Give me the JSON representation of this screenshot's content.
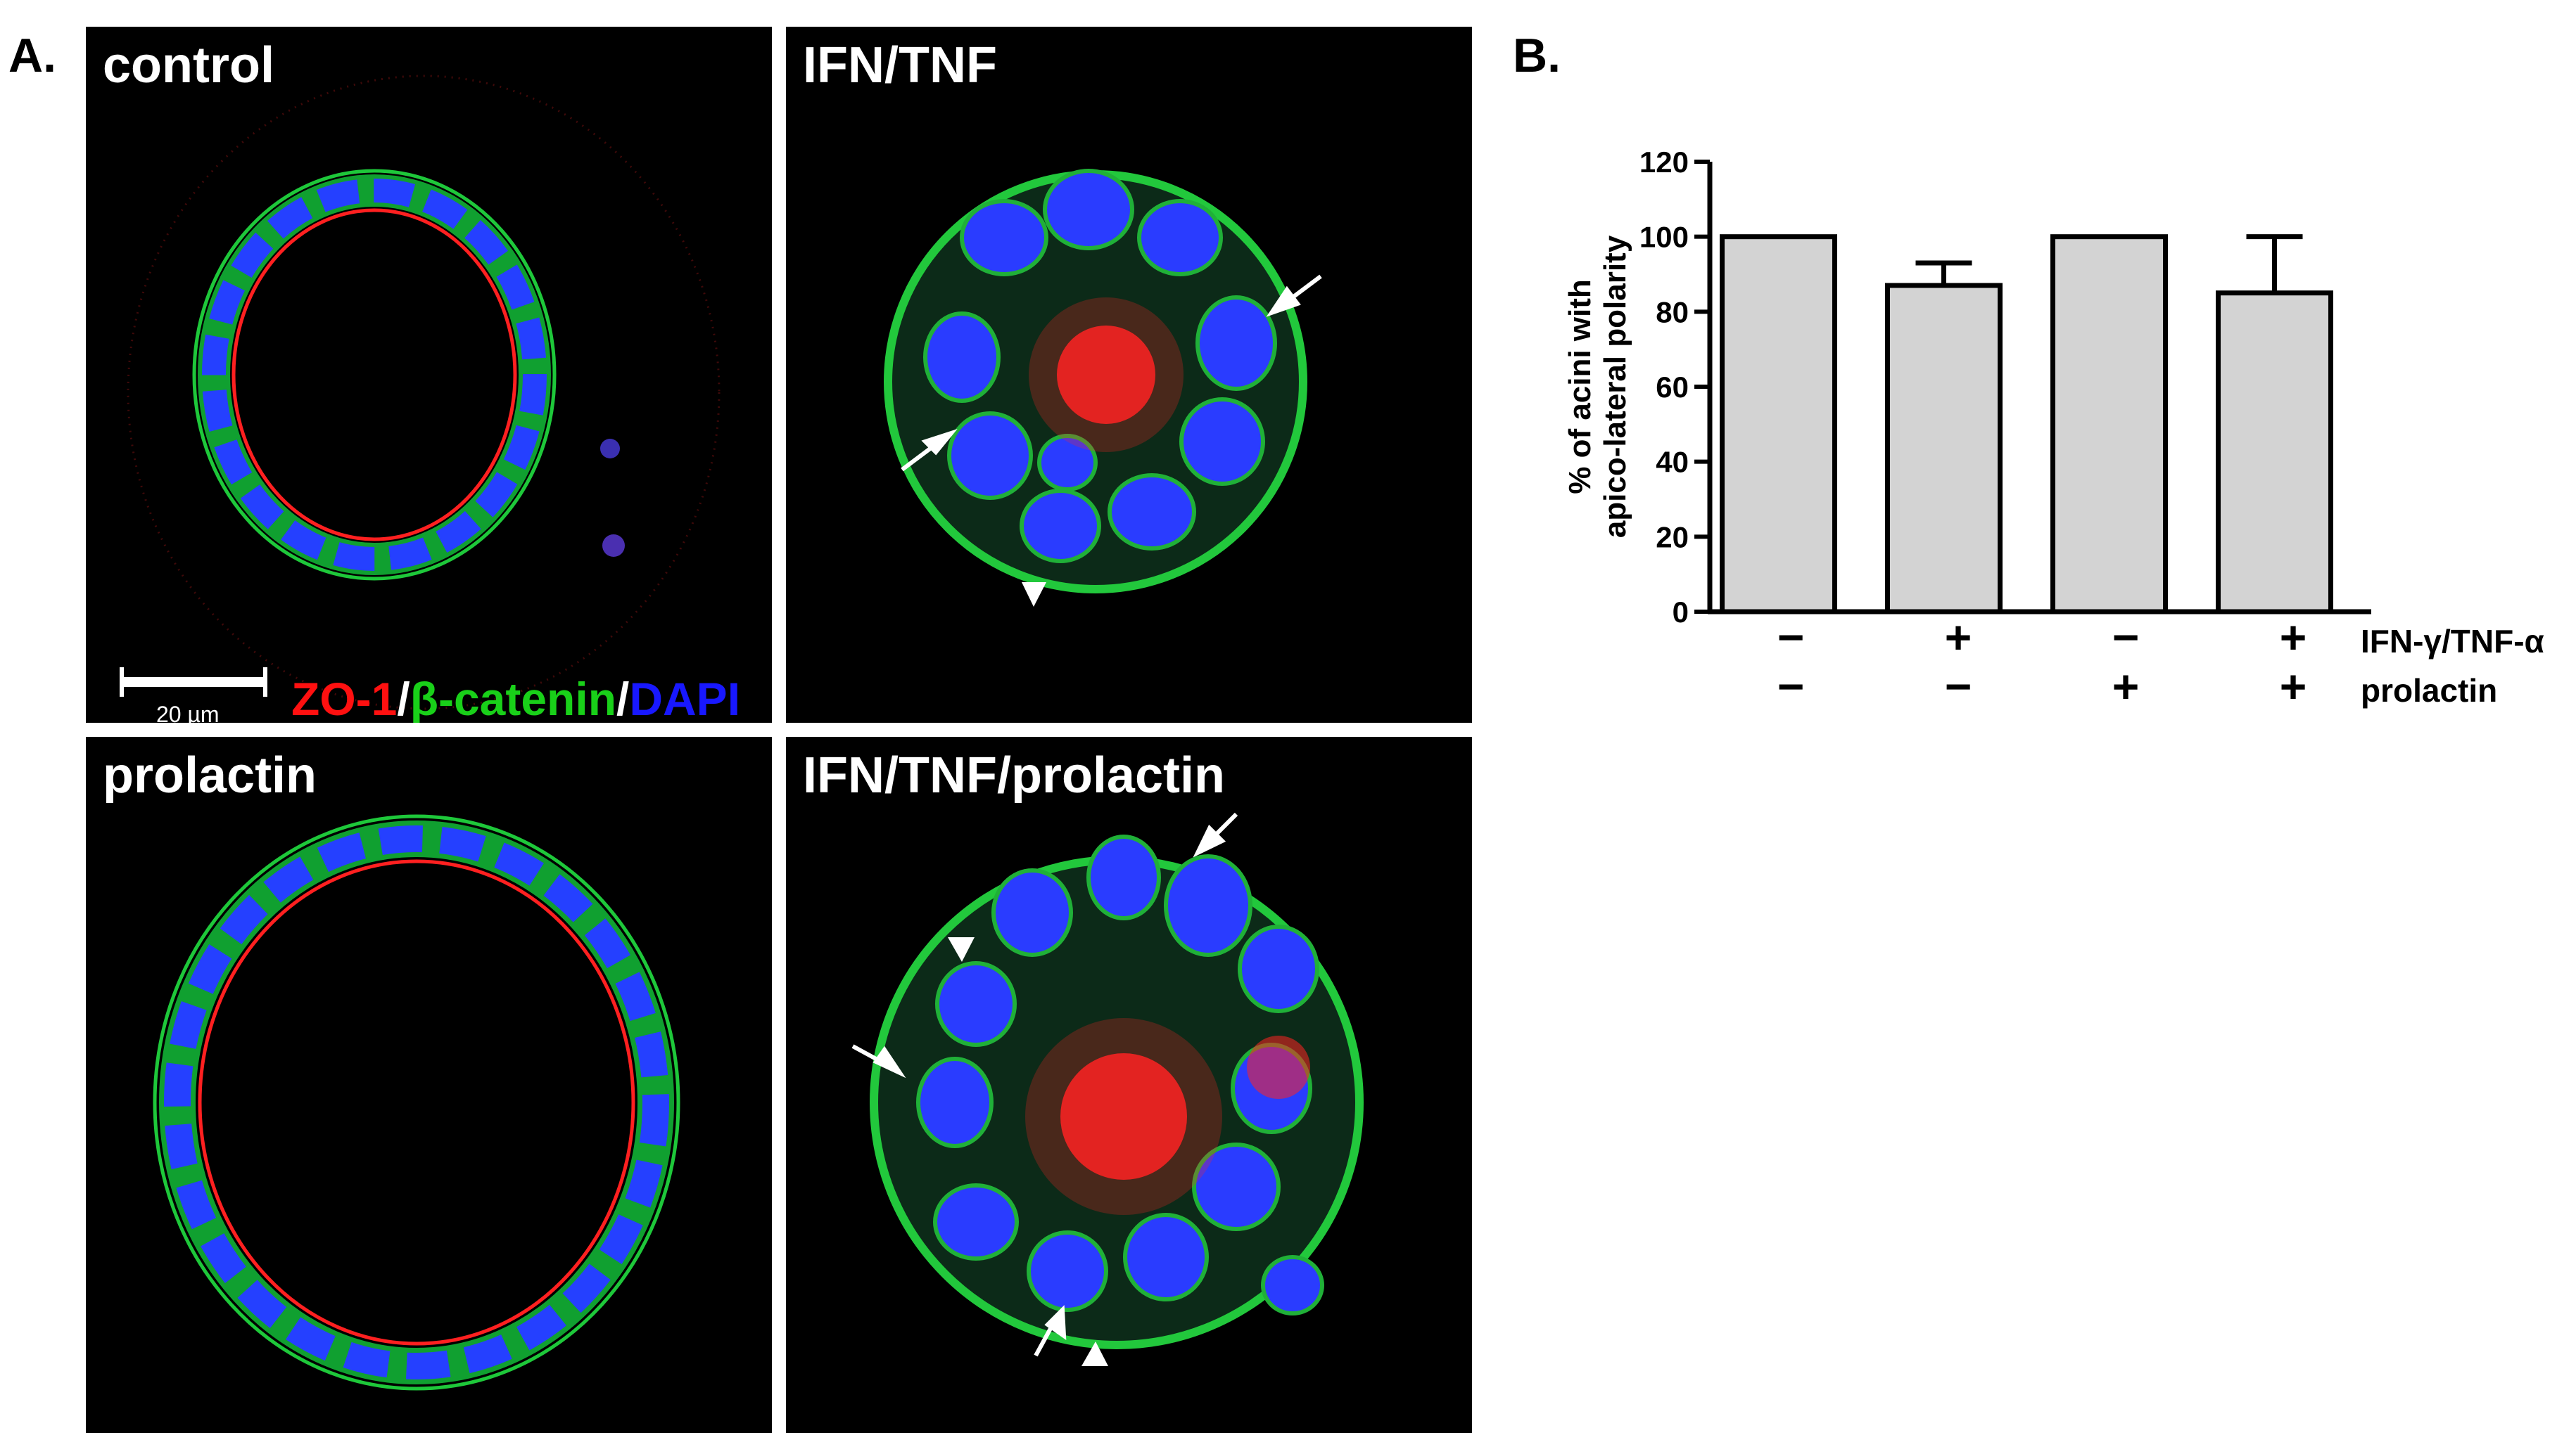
{
  "panel_a": {
    "letter": "A.",
    "images": [
      {
        "label": "control"
      },
      {
        "label": "IFN/TNF"
      },
      {
        "label": "prolactin"
      },
      {
        "label": "IFN/TNF/prolactin"
      }
    ],
    "scale_bar": "20 µm",
    "stain_legend": {
      "zo1": "ZO-1",
      "sep1": "/",
      "bcat": "β-catenin",
      "sep2": "/",
      "dapi": "DAPI"
    }
  },
  "panel_b": {
    "letter": "B.",
    "row_labels": [
      "IFN-γ/TNF-α",
      "prolactin"
    ],
    "signs_row1": [
      "−",
      "+",
      "−",
      "+"
    ],
    "signs_row2": [
      "−",
      "−",
      "+",
      "+"
    ]
  },
  "chart_data": {
    "type": "bar",
    "categories": [
      "−/−",
      "+/−",
      "−/+",
      "+/+"
    ],
    "values": [
      100,
      87,
      100,
      85
    ],
    "errors": [
      0,
      6,
      0,
      15
    ],
    "ylabel_line1": "% of acini with",
    "ylabel_line2": "apico-lateral polarity",
    "ylim": [
      0,
      120
    ],
    "yticks": [
      0,
      20,
      40,
      60,
      80,
      100,
      120
    ],
    "bar_color": "#d3d3d3",
    "grid": false
  }
}
